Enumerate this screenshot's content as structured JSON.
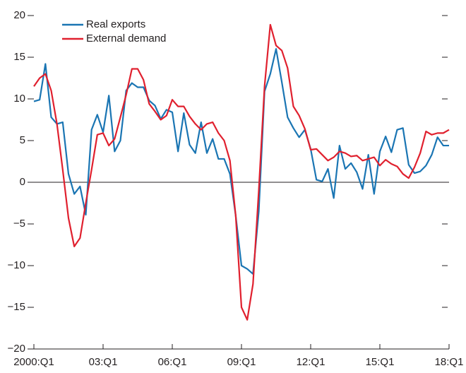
{
  "chart_data": {
    "type": "line",
    "categories": [
      "2000:Q1",
      null,
      null,
      null,
      null,
      null,
      null,
      null,
      null,
      null,
      null,
      null,
      "03:Q1",
      null,
      null,
      null,
      null,
      null,
      null,
      null,
      null,
      null,
      null,
      null,
      "06:Q1",
      null,
      null,
      null,
      null,
      null,
      null,
      null,
      null,
      null,
      null,
      null,
      "09:Q1",
      null,
      null,
      null,
      null,
      null,
      null,
      null,
      null,
      null,
      null,
      null,
      "12:Q1",
      null,
      null,
      null,
      null,
      null,
      null,
      null,
      null,
      null,
      null,
      null,
      "15:Q1",
      null,
      null,
      null,
      null,
      null,
      null,
      null,
      null,
      null,
      null,
      null,
      "18:Q1"
    ],
    "series": [
      {
        "name": "Real exports",
        "color": "#1a75b3",
        "values": [
          9.7,
          9.9,
          14.2,
          7.8,
          7.0,
          7.2,
          1.0,
          -1.4,
          -0.5,
          -3.9,
          6.3,
          8.1,
          6.0,
          10.4,
          3.7,
          5.0,
          11.0,
          11.9,
          11.4,
          11.4,
          9.8,
          9.2,
          7.6,
          8.7,
          8.4,
          3.7,
          8.3,
          4.5,
          3.5,
          7.2,
          3.5,
          5.2,
          2.8,
          2.8,
          1.0,
          -4.0,
          -10.0,
          -10.4,
          -11.0,
          -3.5,
          10.9,
          13.0,
          16.0,
          12.0,
          7.8,
          6.5,
          5.4,
          6.3,
          4.0,
          0.3,
          0.1,
          1.6,
          -1.9,
          4.4,
          1.6,
          2.3,
          1.2,
          -0.8,
          3.3,
          -1.4,
          3.7,
          5.5,
          3.6,
          6.3,
          6.5,
          2.1,
          1.1,
          1.3,
          2.0,
          3.3,
          5.4,
          4.4,
          4.4
        ]
      },
      {
        "name": "External demand",
        "color": "#e0202e",
        "values": [
          11.5,
          12.5,
          13.0,
          11.0,
          7.0,
          1.5,
          -4.3,
          -7.7,
          -6.7,
          -2.5,
          1.5,
          5.7,
          5.9,
          4.4,
          5.2,
          7.8,
          10.5,
          13.6,
          13.6,
          12.3,
          9.4,
          8.5,
          7.5,
          8.0,
          9.9,
          9.1,
          9.1,
          7.9,
          7.0,
          6.3,
          7.0,
          7.2,
          5.9,
          5.0,
          2.6,
          -4.0,
          -15.0,
          -16.5,
          -12.2,
          -1.0,
          11.5,
          18.9,
          16.4,
          15.8,
          13.7,
          9.1,
          8.0,
          6.4,
          3.9,
          4.0,
          3.3,
          2.6,
          3.0,
          3.7,
          3.5,
          3.1,
          3.2,
          2.6,
          2.8,
          3.0,
          2.0,
          2.7,
          2.2,
          1.9,
          1.0,
          0.5,
          1.8,
          3.5,
          6.1,
          5.7,
          5.9,
          5.9,
          6.3
        ]
      }
    ],
    "ylim": [
      -20,
      20
    ],
    "yticks": [
      {
        "value": -20,
        "label": "−20"
      },
      {
        "value": -15,
        "label": "−15"
      },
      {
        "value": -10,
        "label": "−10"
      },
      {
        "value": -5,
        "label": "−5"
      },
      0,
      5,
      10,
      15,
      20
    ],
    "zero_line": true,
    "legend": "upper left"
  }
}
